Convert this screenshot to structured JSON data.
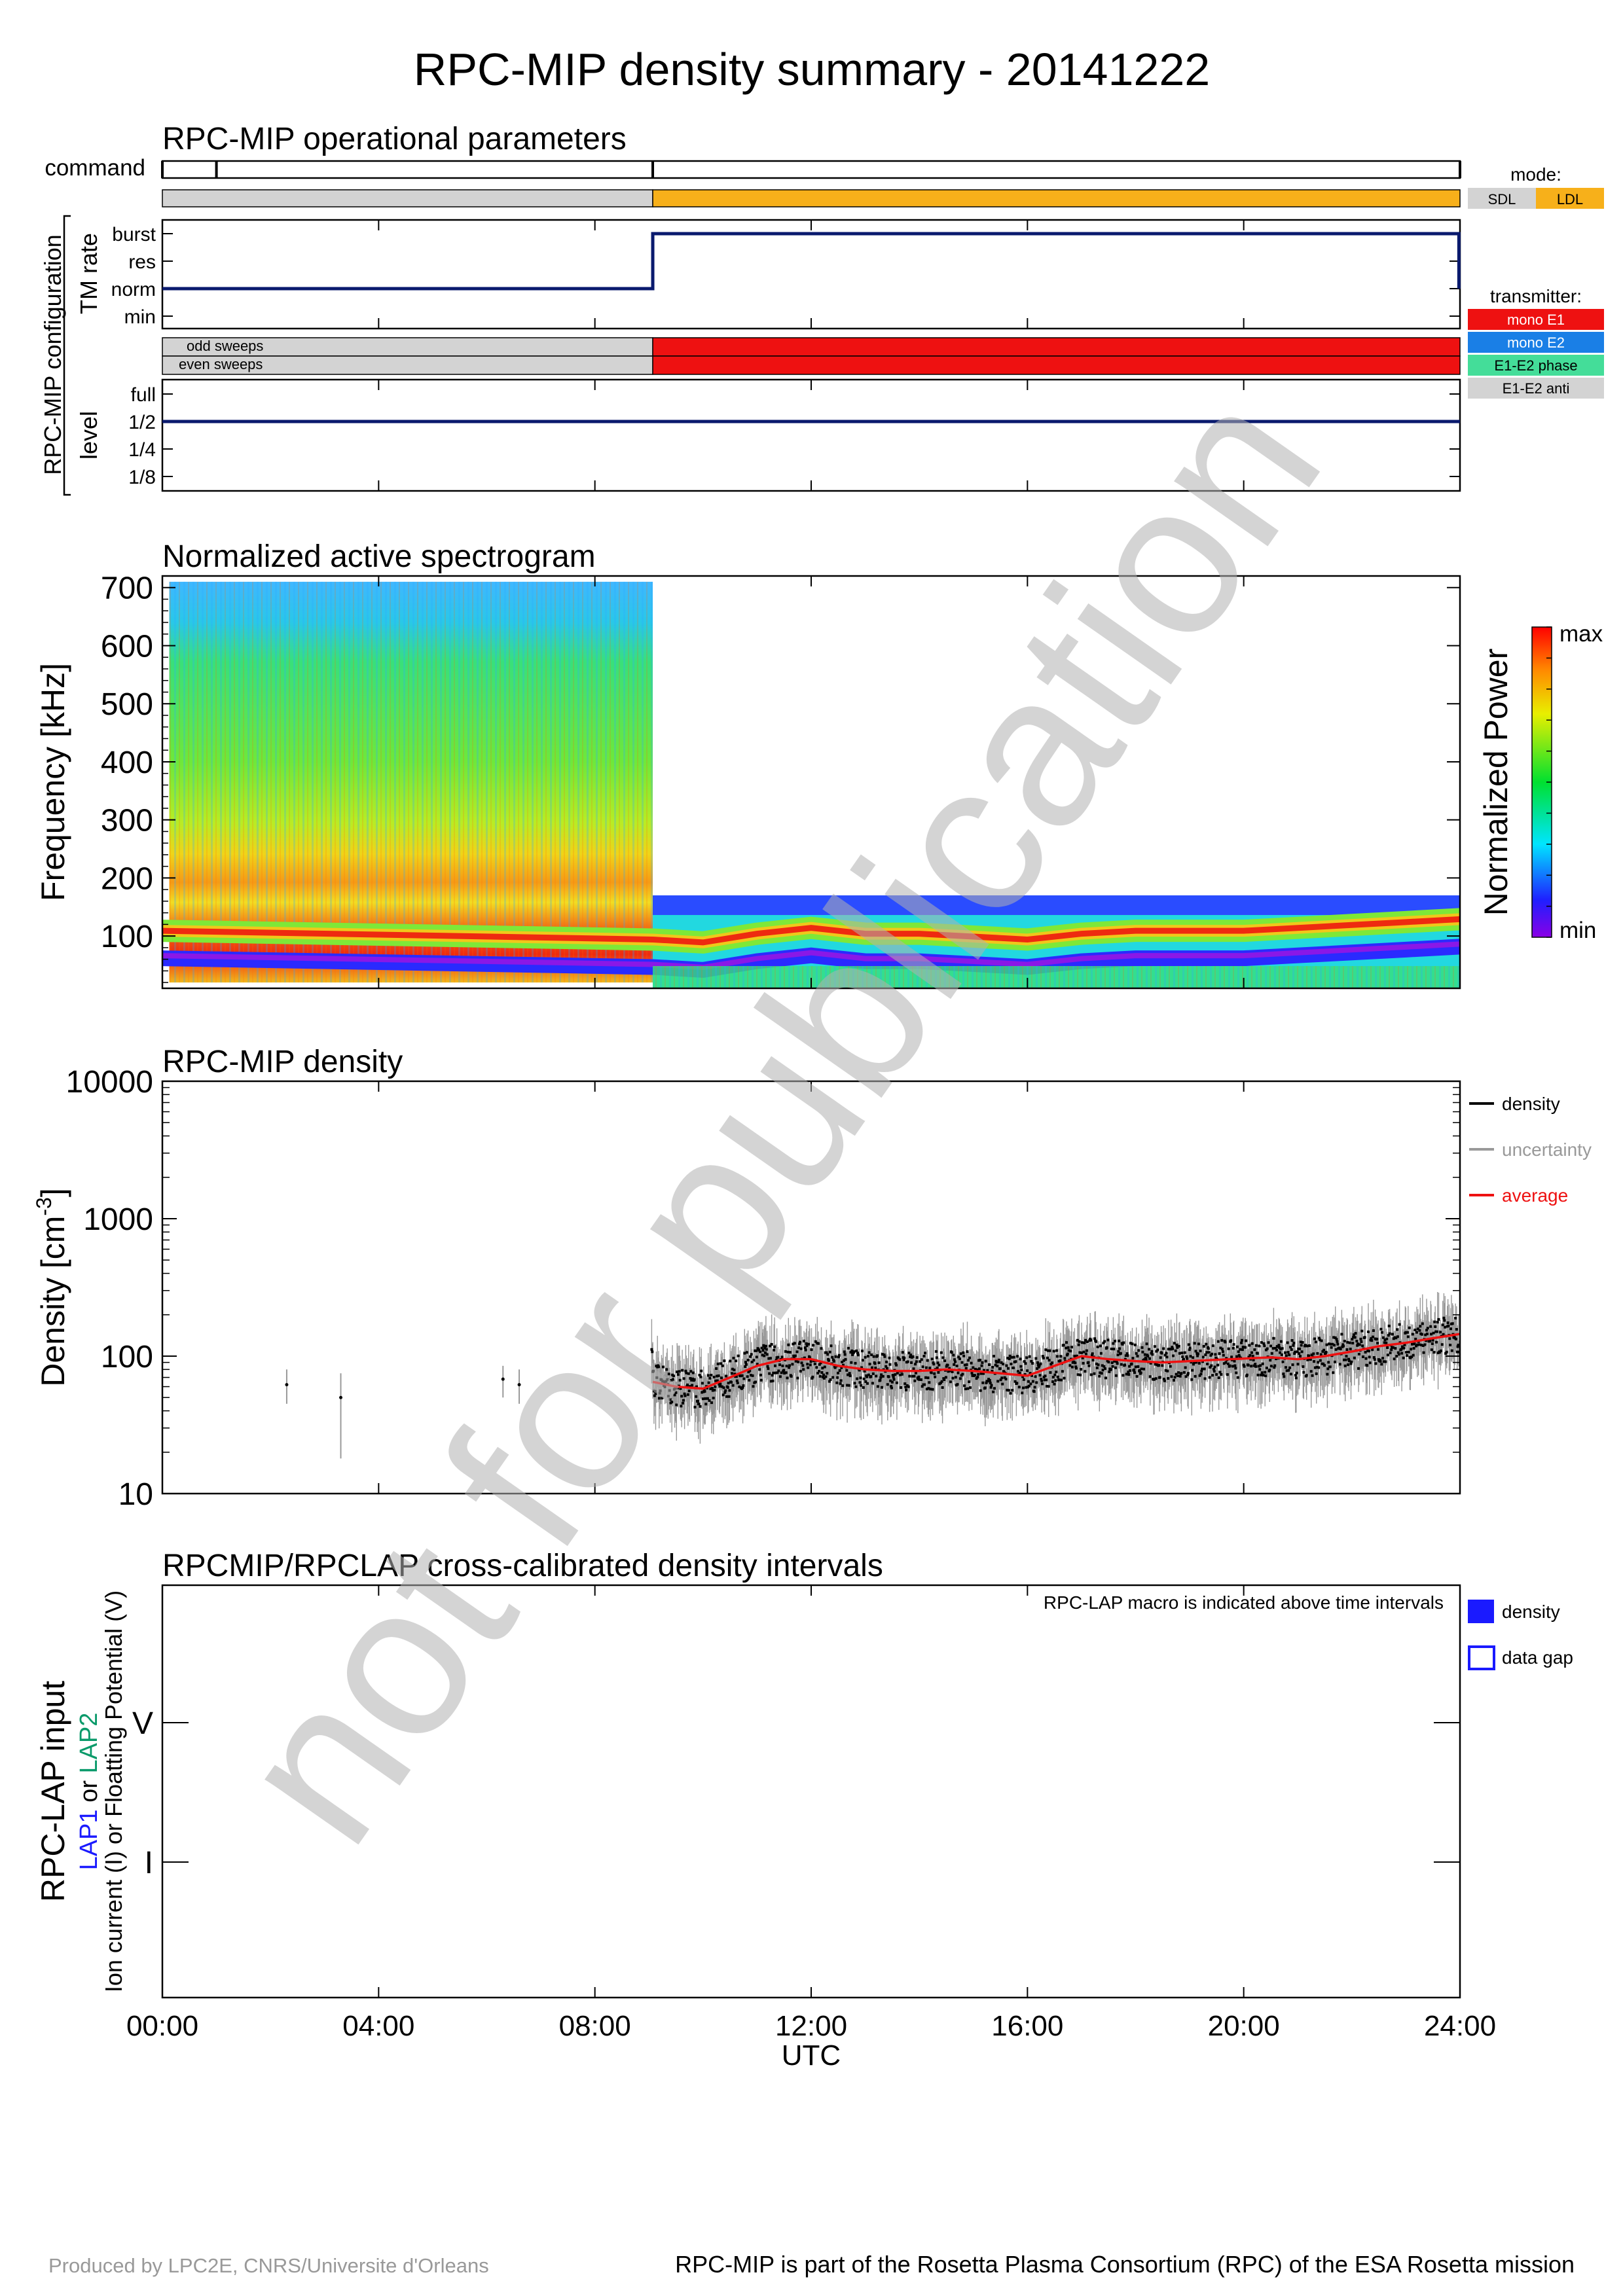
{
  "title": "RPC-MIP density summary - 20141222",
  "watermark": "not for publication",
  "operational": {
    "title": "RPC-MIP operational parameters",
    "command_label": "command",
    "config_label": "RPC-MIP configuration",
    "tm_rate_label": "TM rate",
    "level_label": "level",
    "tm_rate_ticks": [
      "burst",
      "res",
      "norm",
      "min"
    ],
    "level_ticks": [
      "full",
      "1/2",
      "1/4",
      "1/8"
    ],
    "sweep_labels": [
      "odd sweeps",
      "even sweeps"
    ],
    "mode_legend_title": "mode:",
    "mode_legend": [
      {
        "label": "SDL",
        "color": "#d3d3d3"
      },
      {
        "label": "LDL",
        "color": "#f7b01a"
      }
    ],
    "transmitter_legend_title": "transmitter:",
    "transmitter_legend": [
      {
        "label": "mono E1",
        "color": "#ee1111"
      },
      {
        "label": "mono E2",
        "color": "#1a7fe6"
      },
      {
        "label": "E1-E2 phase",
        "color": "#44dd99"
      },
      {
        "label": "E1-E2 anti",
        "color": "#d3d3d3"
      }
    ]
  },
  "spectrogram": {
    "title": "Normalized active spectrogram",
    "ylabel": "Frequency [kHz]",
    "yticks": [
      "700",
      "600",
      "500",
      "400",
      "300",
      "200",
      "100"
    ],
    "colorbar_label": "Normalized Power",
    "colorbar_max": "max",
    "colorbar_min": "min"
  },
  "density": {
    "title": "RPC-MIP density",
    "ylabel": "Density [cm",
    "ylabel_sup": "-3",
    "ylabel_end": "]",
    "yticks": [
      "10000",
      "1000",
      "100",
      "10"
    ],
    "legend": [
      {
        "label": "density",
        "color": "#000000"
      },
      {
        "label": "uncertainty",
        "color": "#999999"
      },
      {
        "label": "average",
        "color": "#ee1111"
      }
    ]
  },
  "crosscal": {
    "title": "RPCMIP/RPCLAP cross-calibrated density intervals",
    "note": "RPC-LAP macro is indicated above time intervals",
    "ylabel_1": "RPC-LAP input",
    "ylabel_2a": "LAP1",
    "ylabel_2b": " or ",
    "ylabel_2c": "LAP2",
    "ylabel_3": "Ion current (I) or Floatting Potential (V)",
    "yticks": [
      "V",
      "I"
    ],
    "legend": [
      {
        "label": "density"
      },
      {
        "label": "data gap"
      }
    ]
  },
  "xaxis": {
    "ticks": [
      "00:00",
      "04:00",
      "08:00",
      "12:00",
      "16:00",
      "20:00",
      "24:00"
    ],
    "label": "UTC"
  },
  "footer": {
    "left": "Produced by LPC2E, CNRS/Universite d'Orleans",
    "right": "RPC-MIP is part of the Rosetta Plasma Consortium (RPC) of the ESA Rosetta mission"
  },
  "colors": {
    "navy": "#0a1a6e",
    "sdl": "#d3d3d3",
    "ldl": "#f7b01a",
    "red": "#ee1111",
    "gray": "#999999"
  },
  "chart_data": [
    {
      "type": "line",
      "name": "TM rate",
      "x_hours": [
        0,
        9.07,
        9.07,
        23.98,
        23.98
      ],
      "y": [
        "norm",
        "norm",
        "burst",
        "burst",
        "norm"
      ]
    },
    {
      "type": "line",
      "name": "level",
      "x_hours": [
        0,
        24
      ],
      "y": [
        "1/2",
        "1/2"
      ]
    },
    {
      "type": "bar",
      "name": "mode",
      "segments": [
        {
          "start": 0,
          "end": 9.07,
          "mode": "SDL"
        },
        {
          "start": 9.07,
          "end": 24,
          "mode": "LDL"
        }
      ],
      "command_ticks_hours": [
        0,
        1.0,
        9.07,
        24
      ]
    },
    {
      "type": "bar",
      "name": "transmitter",
      "segments": [
        {
          "start": 0,
          "end": 9.07,
          "transmitter": "E1-E2 anti"
        },
        {
          "start": 9.07,
          "end": 24,
          "transmitter": "mono E1"
        }
      ]
    },
    {
      "type": "heatmap",
      "ylim": [
        10,
        720
      ],
      "regions": [
        {
          "start_hour": 0.2,
          "end_hour": 9.07,
          "fmin_khz": 20,
          "fmax_khz": 710
        },
        {
          "start_hour": 9.07,
          "end_hour": 24,
          "fmin_khz": 10,
          "fmax_khz": 170
        }
      ],
      "ridge_khz": {
        "x_hours": [
          0,
          9.07,
          10,
          11,
          12,
          13,
          14,
          15,
          16,
          17,
          18,
          19,
          20,
          21,
          22,
          23,
          24
        ],
        "y": [
          100,
          85,
          80,
          95,
          105,
          95,
          95,
          90,
          85,
          95,
          100,
          100,
          100,
          105,
          110,
          115,
          120
        ]
      }
    },
    {
      "type": "scatter",
      "yscale": "log",
      "ylim": [
        10,
        10000
      ],
      "xlim_hours": [
        0,
        24
      ],
      "isolated_points": [
        {
          "x": 2.3,
          "y": 62,
          "low": 45,
          "high": 80
        },
        {
          "x": 3.3,
          "y": 50,
          "low": 18,
          "high": 75
        },
        {
          "x": 6.3,
          "y": 68,
          "low": 50,
          "high": 85
        },
        {
          "x": 6.6,
          "y": 62,
          "low": 45,
          "high": 80
        }
      ],
      "average": {
        "x_hours": [
          9.07,
          9.5,
          10,
          10.5,
          11,
          11.5,
          12,
          12.5,
          13,
          13.5,
          14,
          14.5,
          15,
          15.5,
          16,
          16.5,
          17,
          17.5,
          18,
          18.5,
          19,
          19.5,
          20,
          20.5,
          21,
          21.5,
          22,
          22.5,
          23,
          23.5,
          24
        ],
        "y": [
          65,
          60,
          58,
          70,
          85,
          95,
          95,
          85,
          80,
          78,
          78,
          80,
          78,
          75,
          72,
          85,
          100,
          95,
          92,
          90,
          92,
          94,
          96,
          98,
          95,
          100,
          108,
          118,
          125,
          135,
          145
        ]
      }
    }
  ]
}
